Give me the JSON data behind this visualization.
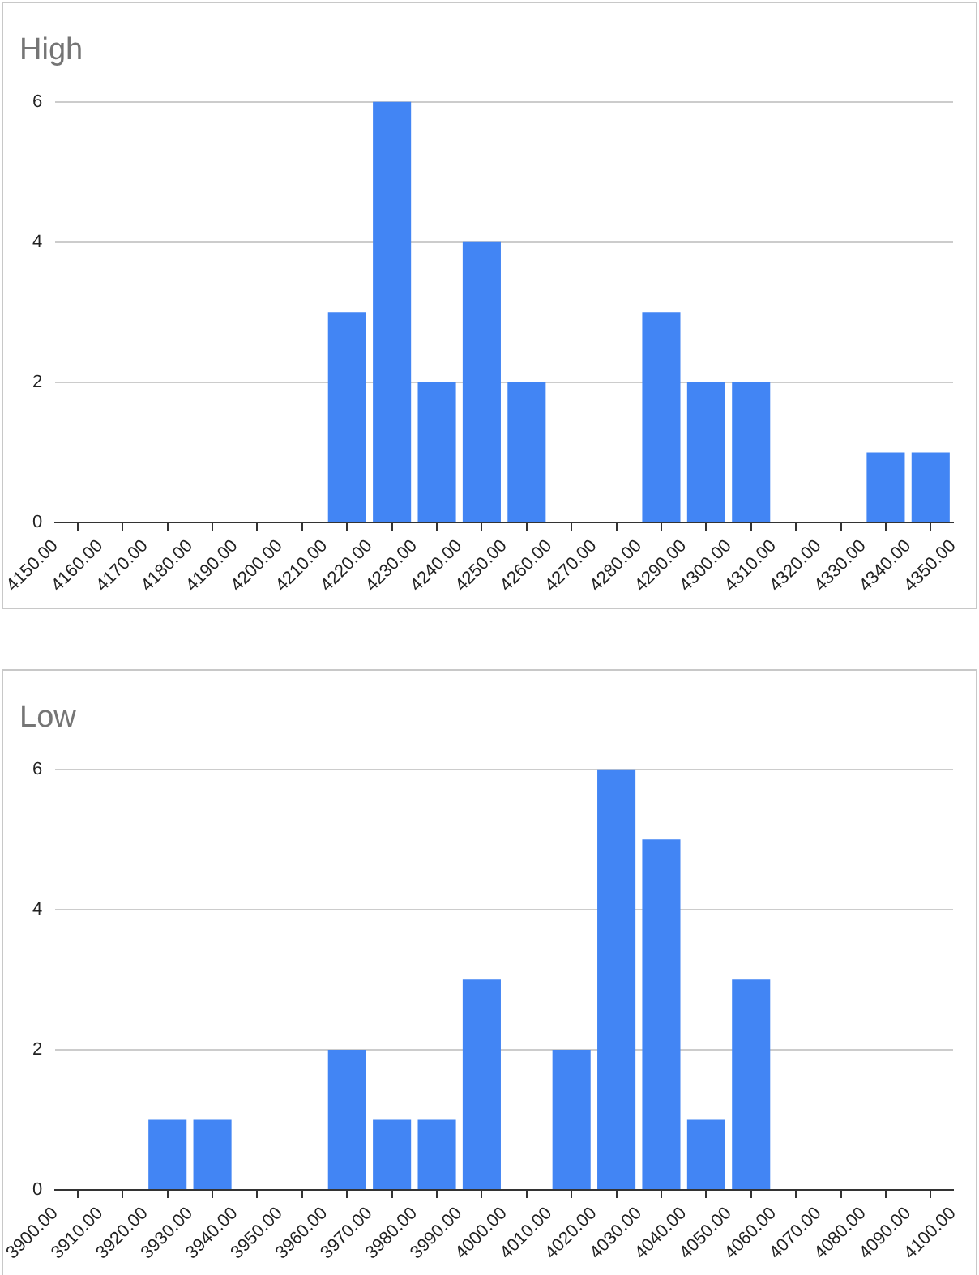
{
  "chart_data": [
    {
      "type": "histogram",
      "title": "High",
      "bins": [
        4150,
        4160,
        4170,
        4180,
        4190,
        4200,
        4210,
        4220,
        4230,
        4240,
        4250,
        4260,
        4270,
        4280,
        4290,
        4300,
        4310,
        4320,
        4330,
        4340,
        4350
      ],
      "values": [
        0,
        0,
        0,
        0,
        0,
        0,
        3,
        6,
        2,
        4,
        2,
        0,
        0,
        3,
        2,
        2,
        0,
        0,
        1,
        1
      ],
      "color": "#4285f4",
      "xlim": [
        4150,
        4350
      ],
      "xticks": [
        {
          "value": 4150,
          "label": "4150.00"
        },
        {
          "value": 4160,
          "label": "4160.00"
        },
        {
          "value": 4170,
          "label": "4170.00"
        },
        {
          "value": 4180,
          "label": "4180.00"
        },
        {
          "value": 4190,
          "label": "4190.00"
        },
        {
          "value": 4200,
          "label": "4200.00"
        },
        {
          "value": 4210,
          "label": "4210.00"
        },
        {
          "value": 4220,
          "label": "4220.00"
        },
        {
          "value": 4230,
          "label": "4230.00"
        },
        {
          "value": 4240,
          "label": "4240.00"
        },
        {
          "value": 4250,
          "label": "4250.00"
        },
        {
          "value": 4260,
          "label": "4260.00"
        },
        {
          "value": 4270,
          "label": "4270.00"
        },
        {
          "value": 4280,
          "label": "4280.00"
        },
        {
          "value": 4290,
          "label": "4290.00"
        },
        {
          "value": 4300,
          "label": "4300.00"
        },
        {
          "value": 4310,
          "label": "4310.00"
        },
        {
          "value": 4320,
          "label": "4320.00"
        },
        {
          "value": 4330,
          "label": "4330.00"
        },
        {
          "value": 4340,
          "label": "4340.00"
        },
        {
          "value": 4350,
          "label": "4350.00"
        }
      ],
      "ylim": [
        0,
        6
      ],
      "yticks": [
        0,
        2,
        4,
        6
      ],
      "grid": "y",
      "legend": false
    },
    {
      "type": "histogram",
      "title": "Low",
      "bins": [
        3900,
        3910,
        3920,
        3930,
        3940,
        3950,
        3960,
        3970,
        3980,
        3990,
        4000,
        4010,
        4020,
        4030,
        4040,
        4050,
        4060,
        4070,
        4080,
        4090,
        4100
      ],
      "values": [
        0,
        0,
        1,
        1,
        0,
        0,
        2,
        1,
        1,
        3,
        0,
        2,
        6,
        5,
        1,
        3,
        0,
        0,
        0,
        0
      ],
      "color": "#4285f4",
      "xlim": [
        3900,
        4100
      ],
      "xticks": [
        {
          "value": 3900,
          "label": "3900.00"
        },
        {
          "value": 3910,
          "label": "3910.00"
        },
        {
          "value": 3920,
          "label": "3920.00"
        },
        {
          "value": 3930,
          "label": "3930.00"
        },
        {
          "value": 3940,
          "label": "3940.00"
        },
        {
          "value": 3950,
          "label": "3950.00"
        },
        {
          "value": 3960,
          "label": "3960.00"
        },
        {
          "value": 3970,
          "label": "3970.00"
        },
        {
          "value": 3980,
          "label": "3980.00"
        },
        {
          "value": 3990,
          "label": "3990.00"
        },
        {
          "value": 4000,
          "label": "4000.00"
        },
        {
          "value": 4010,
          "label": "4010.00"
        },
        {
          "value": 4020,
          "label": "4020.00"
        },
        {
          "value": 4030,
          "label": "4030.00"
        },
        {
          "value": 4040,
          "label": "4040.00"
        },
        {
          "value": 4050,
          "label": "4050.00"
        },
        {
          "value": 4060,
          "label": "4060.00"
        },
        {
          "value": 4070,
          "label": "4070.00"
        },
        {
          "value": 4080,
          "label": "4080.00"
        },
        {
          "value": 4090,
          "label": "4090.00"
        },
        {
          "value": 4100,
          "label": "4100.00"
        }
      ],
      "ylim": [
        0,
        6
      ],
      "yticks": [
        0,
        2,
        4,
        6
      ],
      "grid": "y",
      "legend": false
    }
  ]
}
